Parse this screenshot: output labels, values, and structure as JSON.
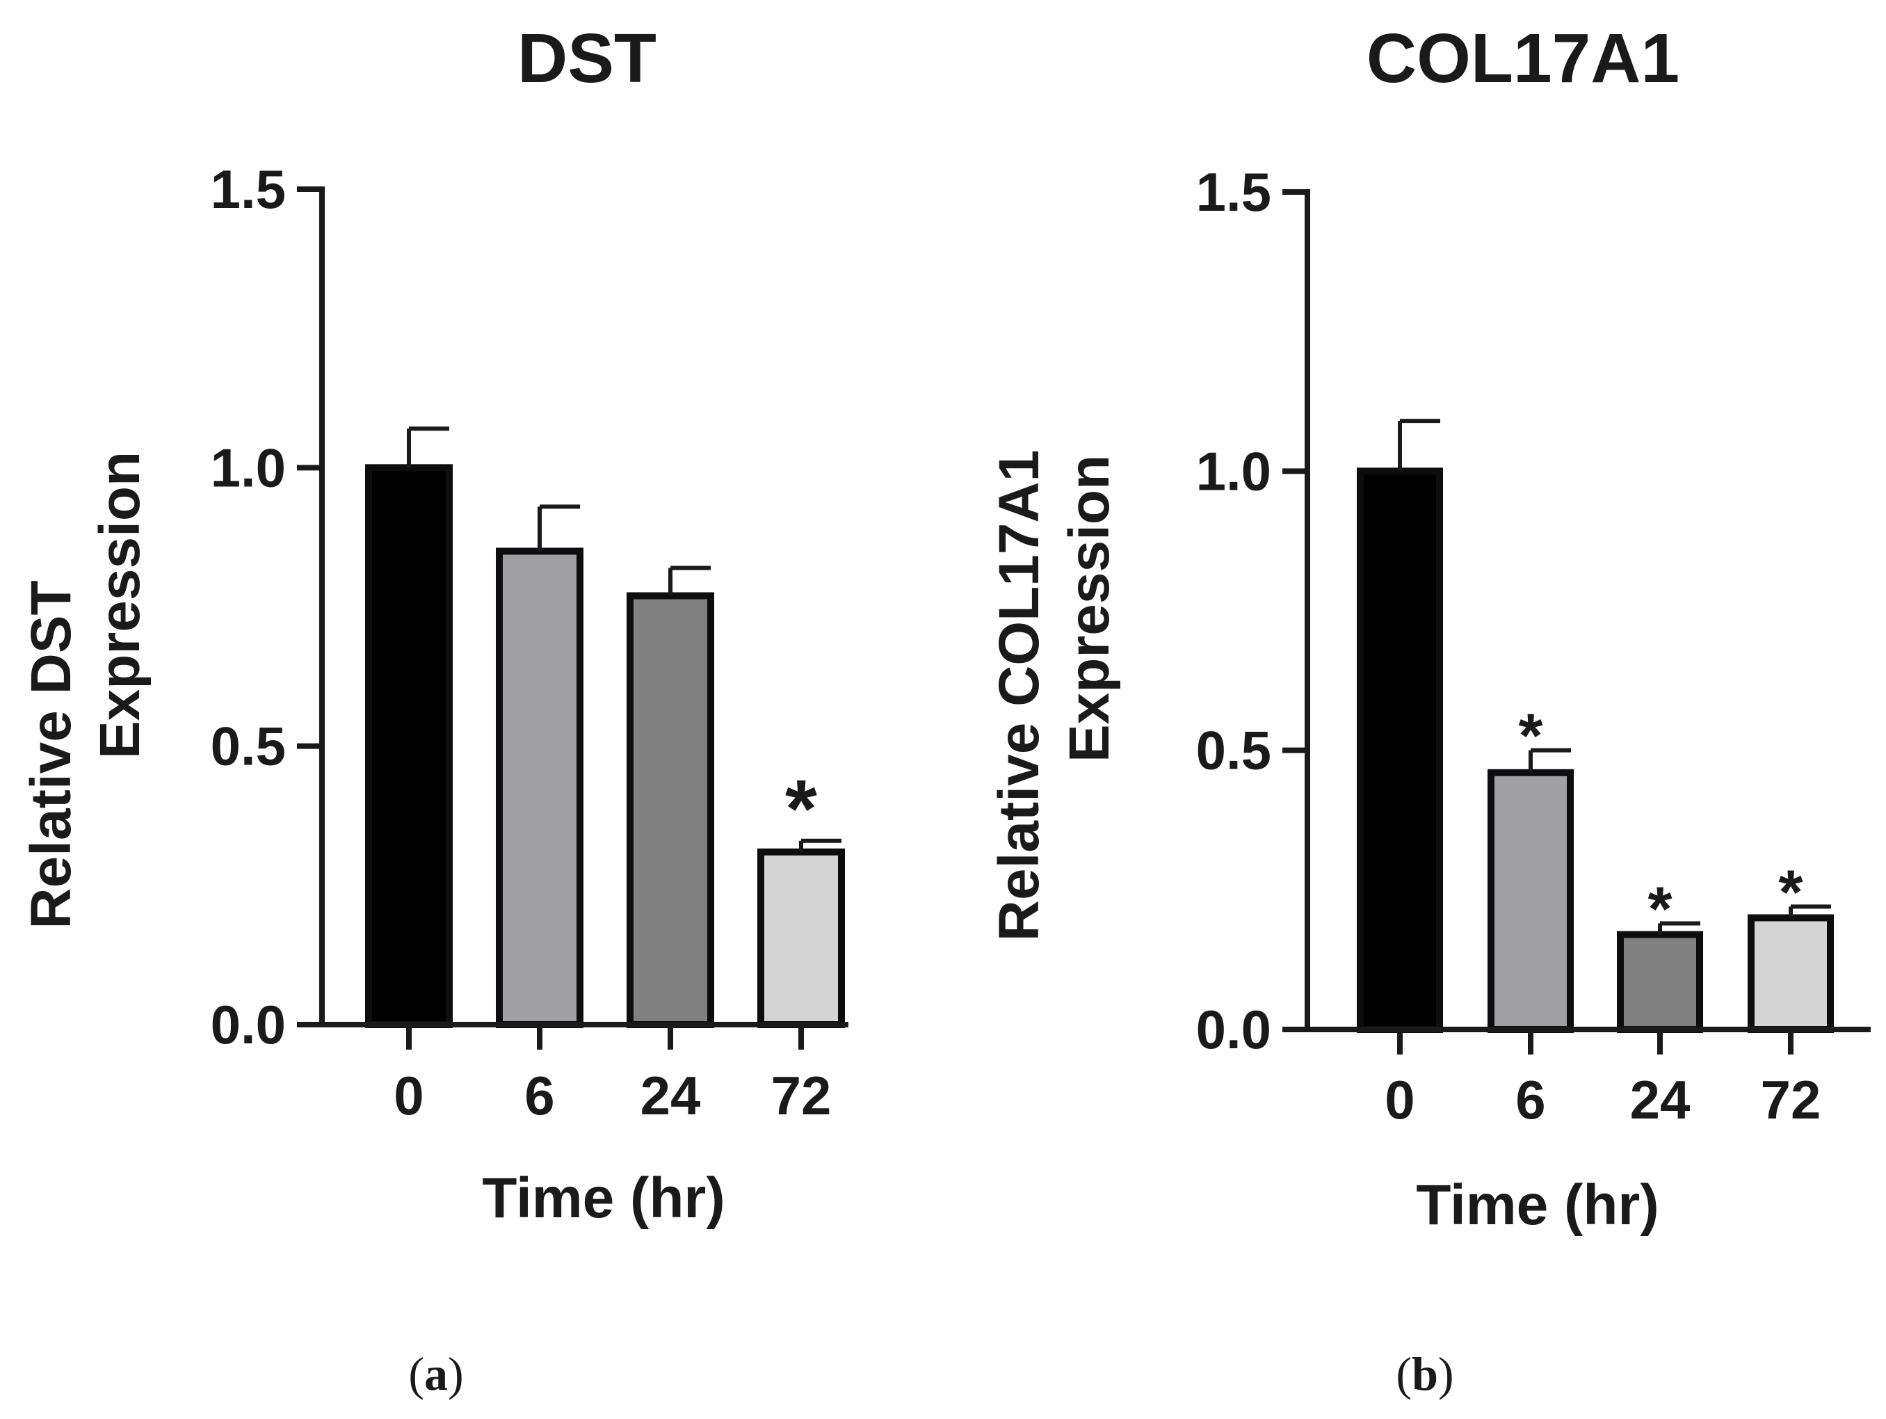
{
  "chart_data": [
    {
      "type": "bar",
      "panel_label_open": "(",
      "panel_label_letter": "a",
      "panel_label_close": ")",
      "title": "DST",
      "xlabel": "Time (hr)",
      "ylabel_line1": "Relative DST",
      "ylabel_line2": "Expression",
      "categories": [
        "0",
        "6",
        "24",
        "72"
      ],
      "values": [
        1.0,
        0.85,
        0.77,
        0.31
      ],
      "errors": [
        0.07,
        0.08,
        0.05,
        0.02
      ],
      "significance": [
        "",
        "",
        "",
        "*"
      ],
      "bar_colors": [
        "#000000",
        "#a0a0a4",
        "#808080",
        "#d4d4d4"
      ],
      "ylim": [
        0,
        1.5
      ],
      "yticks": [
        "0.0",
        "0.5",
        "1.0",
        "1.5"
      ]
    },
    {
      "type": "bar",
      "panel_label_open": "(",
      "panel_label_letter": "b",
      "panel_label_close": ")",
      "title": "COL17A1",
      "xlabel": "Time (hr)",
      "ylabel_line1": "Relative COL17A1",
      "ylabel_line2": "Expression",
      "categories": [
        "0",
        "6",
        "24",
        "72"
      ],
      "values": [
        1.0,
        0.46,
        0.17,
        0.2
      ],
      "errors": [
        0.09,
        0.04,
        0.02,
        0.02
      ],
      "significance": [
        "",
        "*",
        "*",
        "*"
      ],
      "bar_colors": [
        "#000000",
        "#a0a0a4",
        "#808080",
        "#d4d4d4"
      ],
      "ylim": [
        0,
        1.5
      ],
      "yticks": [
        "0.0",
        "0.5",
        "1.0",
        "1.5"
      ]
    }
  ]
}
